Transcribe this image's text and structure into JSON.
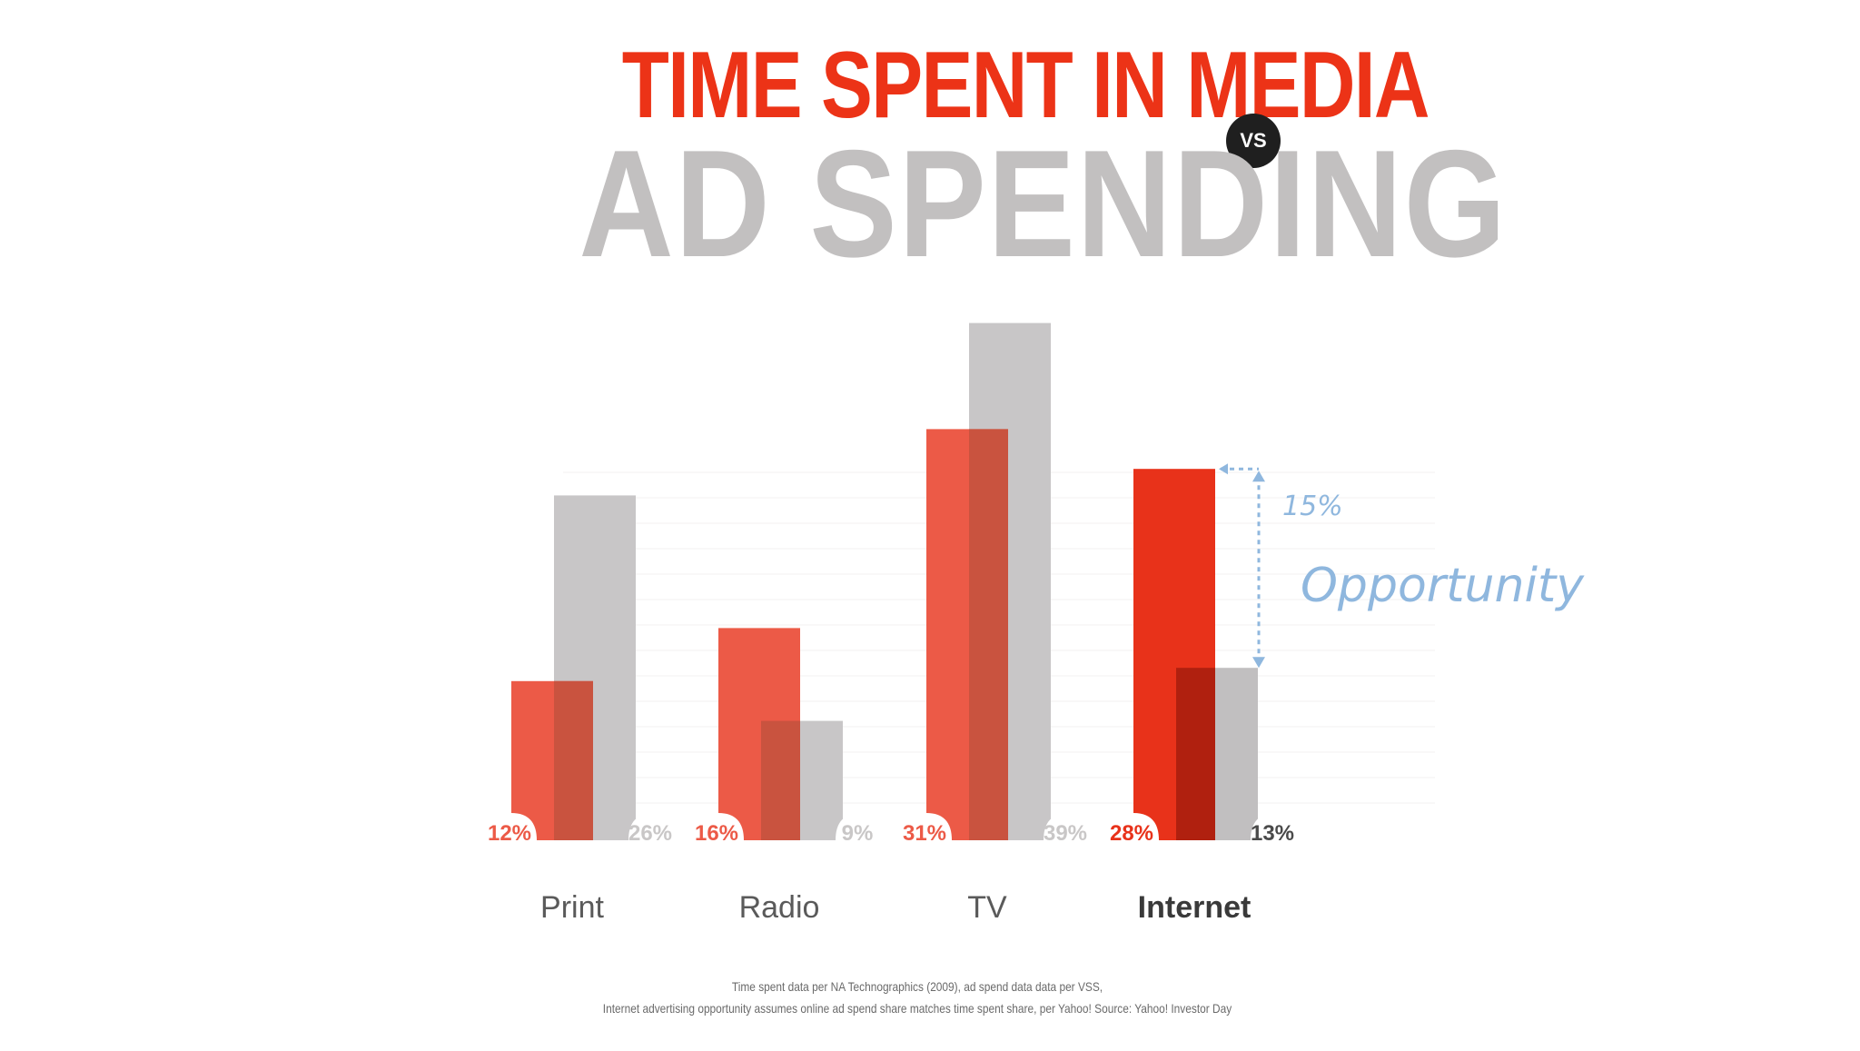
{
  "title": {
    "line1": "TIME SPENT IN MEDIA",
    "vs": "VS",
    "line2": "AD SPENDING"
  },
  "chart_data": {
    "type": "bar",
    "categories": [
      "Print",
      "Radio",
      "TV",
      "Internet"
    ],
    "series": [
      {
        "values": [
          12,
          16,
          31,
          28
        ],
        "labels": [
          "12%",
          "16%",
          "31%",
          "28%"
        ],
        "color": "#ec5a47"
      },
      {
        "values": [
          26,
          9,
          39,
          13
        ],
        "labels": [
          "26%",
          "9%",
          "39%",
          "13%"
        ],
        "color": "#c8c6c7"
      }
    ],
    "highlight_category": "Internet",
    "highlight_colors": {
      "time": "#e8321a",
      "ad": "#c1bfc0",
      "overlap": "#b0200f"
    },
    "overlap_color": "#c9533f",
    "ylim": [
      0,
      40
    ],
    "annotation": {
      "value": "15%",
      "text": "Opportunity",
      "color": "#8fb7de"
    }
  },
  "footnote": {
    "line1": "Time spent data per NA Technographics (2009), ad spend data data per VSS,",
    "line2": "Internet advertising opportunity assumes online ad spend share matches time spent share, per Yahoo! Source: Yahoo! Investor Day"
  }
}
